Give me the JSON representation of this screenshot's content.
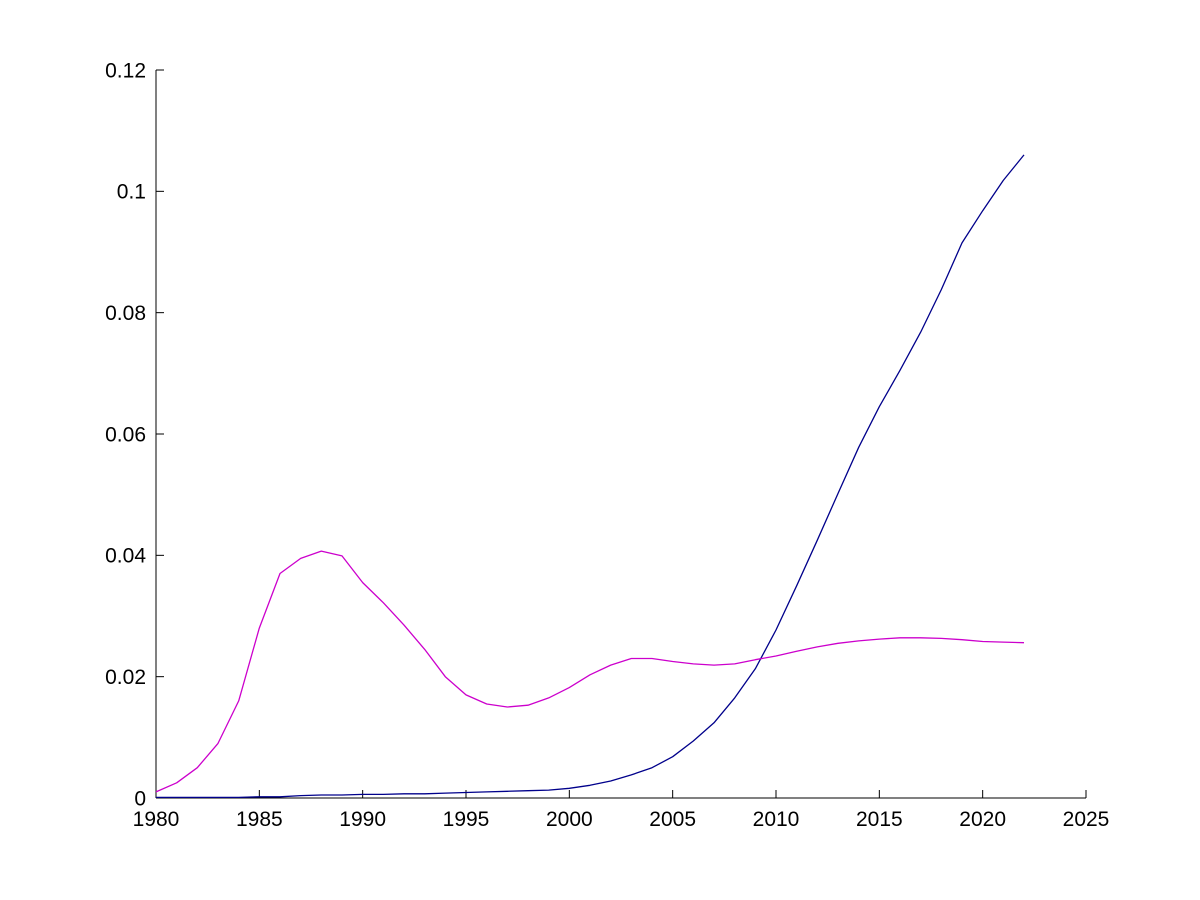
{
  "figure": {
    "background_color": "#ffffff",
    "axis_color": "#000000",
    "tick_label_color": "#000000",
    "tick_label_font_size": 21
  },
  "chart_data": {
    "type": "line",
    "grid": false,
    "legend_position": "none",
    "xlim": [
      1980,
      2025
    ],
    "ylim": [
      0,
      0.12
    ],
    "x_ticks": {
      "values": [
        1980,
        1985,
        1990,
        1995,
        2000,
        2005,
        2010,
        2015,
        2020,
        2025
      ],
      "labels": [
        "1980",
        "1985",
        "1990",
        "1995",
        "2000",
        "2005",
        "2010",
        "2015",
        "2020",
        "2025"
      ]
    },
    "y_ticks": {
      "values": [
        0,
        0.02,
        0.04,
        0.06,
        0.08,
        0.1,
        0.12
      ],
      "labels": [
        "0",
        "0.02",
        "0.04",
        "0.06",
        "0.08",
        "0.1",
        "0.12"
      ]
    },
    "x": [
      1980,
      1981,
      1982,
      1983,
      1984,
      1985,
      1986,
      1987,
      1988,
      1989,
      1990,
      1991,
      1992,
      1993,
      1994,
      1995,
      1996,
      1997,
      1998,
      1999,
      2000,
      2001,
      2002,
      2003,
      2004,
      2005,
      2006,
      2007,
      2008,
      2009,
      2010,
      2011,
      2012,
      2013,
      2014,
      2015,
      2016,
      2017,
      2018,
      2019,
      2020,
      2021,
      2022
    ],
    "series": [
      {
        "name": "magenta-line",
        "color": "#cc00cc",
        "values": [
          0.001,
          0.0025,
          0.005,
          0.009,
          0.016,
          0.028,
          0.037,
          0.0395,
          0.0407,
          0.0399,
          0.0355,
          0.0322,
          0.0285,
          0.0245,
          0.02,
          0.017,
          0.0155,
          0.015,
          0.0153,
          0.0165,
          0.0182,
          0.0203,
          0.0219,
          0.023,
          0.023,
          0.0225,
          0.0221,
          0.0219,
          0.0221,
          0.0228,
          0.0234,
          0.0242,
          0.0249,
          0.0255,
          0.0259,
          0.0262,
          0.0264,
          0.0264,
          0.0263,
          0.0261,
          0.0258,
          0.0257,
          0.0256
        ]
      },
      {
        "name": "dark-blue-line",
        "color": "#00008b",
        "values": [
          0.0001,
          0.0001,
          0.0001,
          0.0001,
          0.0001,
          0.0002,
          0.0002,
          0.0004,
          0.0005,
          0.0005,
          0.0006,
          0.0006,
          0.0007,
          0.0007,
          0.0008,
          0.0009,
          0.001,
          0.0011,
          0.0012,
          0.0013,
          0.0016,
          0.0021,
          0.0028,
          0.0038,
          0.005,
          0.0068,
          0.0094,
          0.0124,
          0.0165,
          0.0213,
          0.0277,
          0.035,
          0.0425,
          0.0502,
          0.0578,
          0.0645,
          0.0705,
          0.0768,
          0.0838,
          0.0915,
          0.0968,
          0.1018,
          0.106
        ]
      }
    ]
  }
}
